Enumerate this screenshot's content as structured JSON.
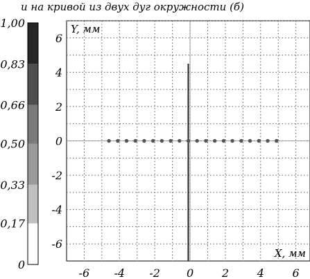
{
  "caption": "и на кривой из двух дуг окружности (б)",
  "colorbar": {
    "labels": [
      "0",
      "0,17",
      "0,33",
      "0,50",
      "0,66",
      "0,83",
      "1,00"
    ],
    "levels": [
      0,
      0.17,
      0.33,
      0.5,
      0.66,
      0.83,
      1.0
    ],
    "colors": [
      "#ffffff",
      "#c0c0c0",
      "#9a9a9a",
      "#7a7a7a",
      "#4e4e4e",
      "#262626"
    ]
  },
  "chart_data": {
    "type": "scatter",
    "xlabel": "X, мм",
    "ylabel": "Y, мм",
    "xlim": [
      -7,
      6.8
    ],
    "ylim": [
      -7,
      7
    ],
    "xticks": [
      -6,
      -4,
      -2,
      0,
      2,
      4,
      6
    ],
    "xtick_labels": [
      "-6",
      "-4",
      "-2",
      "0",
      "2",
      "4",
      "6"
    ],
    "yticks": [
      -6,
      -4,
      -2,
      0,
      2,
      4,
      6
    ],
    "ytick_labels": [
      "-6",
      "-4",
      "-2",
      "0",
      "2",
      "4",
      "6"
    ],
    "grid": true,
    "points": {
      "x": [
        -4.6,
        -4.1,
        -3.6,
        -3.1,
        -2.6,
        -2.1,
        -1.6,
        -1.1,
        -0.6,
        -0.1,
        0.4,
        0.9,
        1.4,
        1.9,
        2.4,
        2.9,
        3.4,
        3.9,
        4.4,
        4.9
      ],
      "y": [
        0,
        0,
        0,
        0,
        0,
        0,
        0,
        0,
        0,
        0,
        0,
        0,
        0,
        0,
        0,
        0,
        0,
        0,
        0,
        0
      ],
      "color": "#555555"
    },
    "vertical_segment": {
      "x": -0.1,
      "y": [
        -7,
        4.5
      ]
    }
  }
}
